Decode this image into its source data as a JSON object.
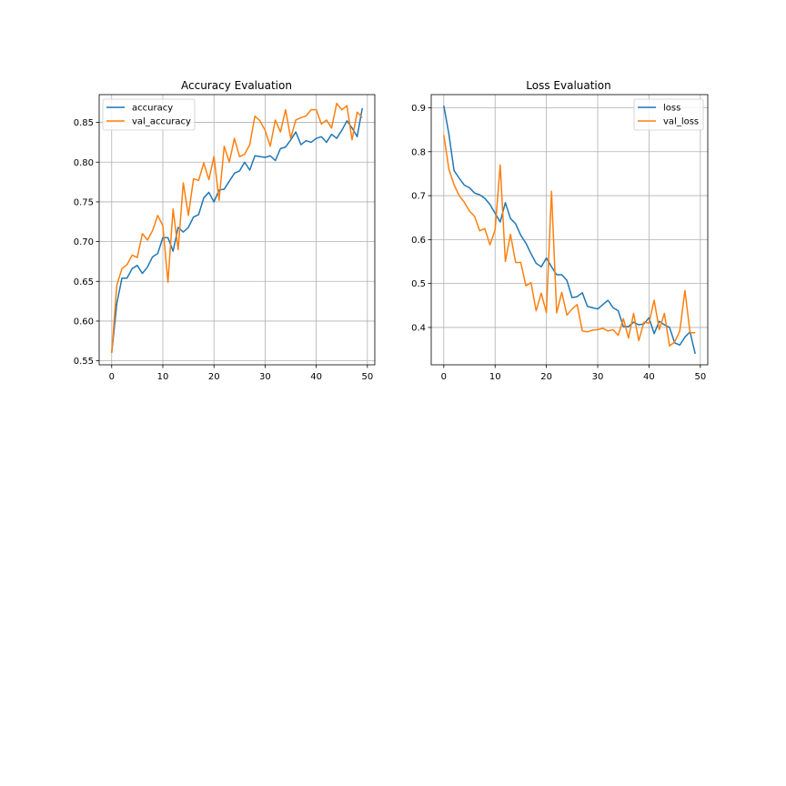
{
  "chart_data": [
    {
      "type": "line",
      "title": "Accuracy Evaluation",
      "xlabel": "",
      "ylabel": "",
      "xlim": [
        -2.45,
        51.45
      ],
      "ylim": [
        0.545,
        0.885
      ],
      "xticks": [
        0,
        10,
        20,
        30,
        40,
        50
      ],
      "yticks": [
        0.55,
        0.6,
        0.65,
        0.7,
        0.75,
        0.8,
        0.85
      ],
      "ytick_labels": [
        "0.55",
        "0.60",
        "0.65",
        "0.70",
        "0.75",
        "0.80",
        "0.85"
      ],
      "grid": true,
      "legend_position": "upper-left",
      "x": [
        0,
        1,
        2,
        3,
        4,
        5,
        6,
        7,
        8,
        9,
        10,
        11,
        12,
        13,
        14,
        15,
        16,
        17,
        18,
        19,
        20,
        21,
        22,
        23,
        24,
        25,
        26,
        27,
        28,
        29,
        30,
        31,
        32,
        33,
        34,
        35,
        36,
        37,
        38,
        39,
        40,
        41,
        42,
        43,
        44,
        45,
        46,
        47,
        48,
        49
      ],
      "series": [
        {
          "name": "accuracy",
          "color": "#1f77b4",
          "values": [
            0.56,
            0.622,
            0.654,
            0.654,
            0.666,
            0.67,
            0.66,
            0.668,
            0.681,
            0.685,
            0.705,
            0.705,
            0.688,
            0.718,
            0.712,
            0.718,
            0.731,
            0.734,
            0.755,
            0.762,
            0.75,
            0.765,
            0.766,
            0.776,
            0.786,
            0.789,
            0.8,
            0.79,
            0.808,
            0.807,
            0.806,
            0.808,
            0.802,
            0.817,
            0.819,
            0.828,
            0.838,
            0.822,
            0.827,
            0.825,
            0.83,
            0.832,
            0.825,
            0.835,
            0.83,
            0.84,
            0.852,
            0.843,
            0.832,
            0.868
          ]
        },
        {
          "name": "val_accuracy",
          "color": "#ff7f0e",
          "values": [
            0.56,
            0.645,
            0.666,
            0.671,
            0.683,
            0.68,
            0.71,
            0.702,
            0.714,
            0.733,
            0.72,
            0.649,
            0.741,
            0.69,
            0.774,
            0.733,
            0.779,
            0.777,
            0.799,
            0.778,
            0.807,
            0.752,
            0.82,
            0.8,
            0.83,
            0.807,
            0.81,
            0.822,
            0.858,
            0.852,
            0.84,
            0.82,
            0.853,
            0.838,
            0.866,
            0.83,
            0.853,
            0.856,
            0.858,
            0.866,
            0.866,
            0.848,
            0.853,
            0.843,
            0.874,
            0.866,
            0.871,
            0.828,
            0.863,
            0.856
          ]
        }
      ]
    },
    {
      "type": "line",
      "title": "Loss Evaluation",
      "xlabel": "",
      "ylabel": "",
      "xlim": [
        -2.45,
        51.45
      ],
      "ylim": [
        0.315,
        0.93
      ],
      "xticks": [
        0,
        10,
        20,
        30,
        40,
        50
      ],
      "yticks": [
        0.4,
        0.5,
        0.6,
        0.7,
        0.8,
        0.9
      ],
      "ytick_labels": [
        "0.4",
        "0.5",
        "0.6",
        "0.7",
        "0.8",
        "0.9"
      ],
      "grid": true,
      "legend_position": "upper-right",
      "x": [
        0,
        1,
        2,
        3,
        4,
        5,
        6,
        7,
        8,
        9,
        10,
        11,
        12,
        13,
        14,
        15,
        16,
        17,
        18,
        19,
        20,
        21,
        22,
        23,
        24,
        25,
        26,
        27,
        28,
        29,
        30,
        31,
        32,
        33,
        34,
        35,
        36,
        37,
        38,
        39,
        40,
        41,
        42,
        43,
        44,
        45,
        46,
        47,
        48,
        49
      ],
      "series": [
        {
          "name": "loss",
          "color": "#1f77b4",
          "values": [
            0.905,
            0.84,
            0.757,
            0.74,
            0.724,
            0.718,
            0.706,
            0.702,
            0.694,
            0.68,
            0.66,
            0.64,
            0.684,
            0.648,
            0.636,
            0.61,
            0.592,
            0.568,
            0.546,
            0.538,
            0.558,
            0.538,
            0.52,
            0.52,
            0.507,
            0.468,
            0.47,
            0.479,
            0.448,
            0.445,
            0.442,
            0.452,
            0.462,
            0.445,
            0.438,
            0.402,
            0.402,
            0.412,
            0.406,
            0.408,
            0.422,
            0.386,
            0.414,
            0.406,
            0.4,
            0.365,
            0.36,
            0.378,
            0.39,
            0.34
          ]
        },
        {
          "name": "val_loss",
          "color": "#ff7f0e",
          "values": [
            0.838,
            0.76,
            0.725,
            0.7,
            0.685,
            0.665,
            0.653,
            0.62,
            0.625,
            0.588,
            0.622,
            0.77,
            0.55,
            0.612,
            0.548,
            0.548,
            0.495,
            0.502,
            0.438,
            0.478,
            0.434,
            0.71,
            0.433,
            0.48,
            0.428,
            0.442,
            0.452,
            0.392,
            0.39,
            0.394,
            0.395,
            0.398,
            0.392,
            0.395,
            0.382,
            0.42,
            0.376,
            0.432,
            0.37,
            0.412,
            0.41,
            0.462,
            0.395,
            0.432,
            0.358,
            0.367,
            0.392,
            0.484,
            0.388,
            0.388
          ]
        }
      ]
    }
  ]
}
